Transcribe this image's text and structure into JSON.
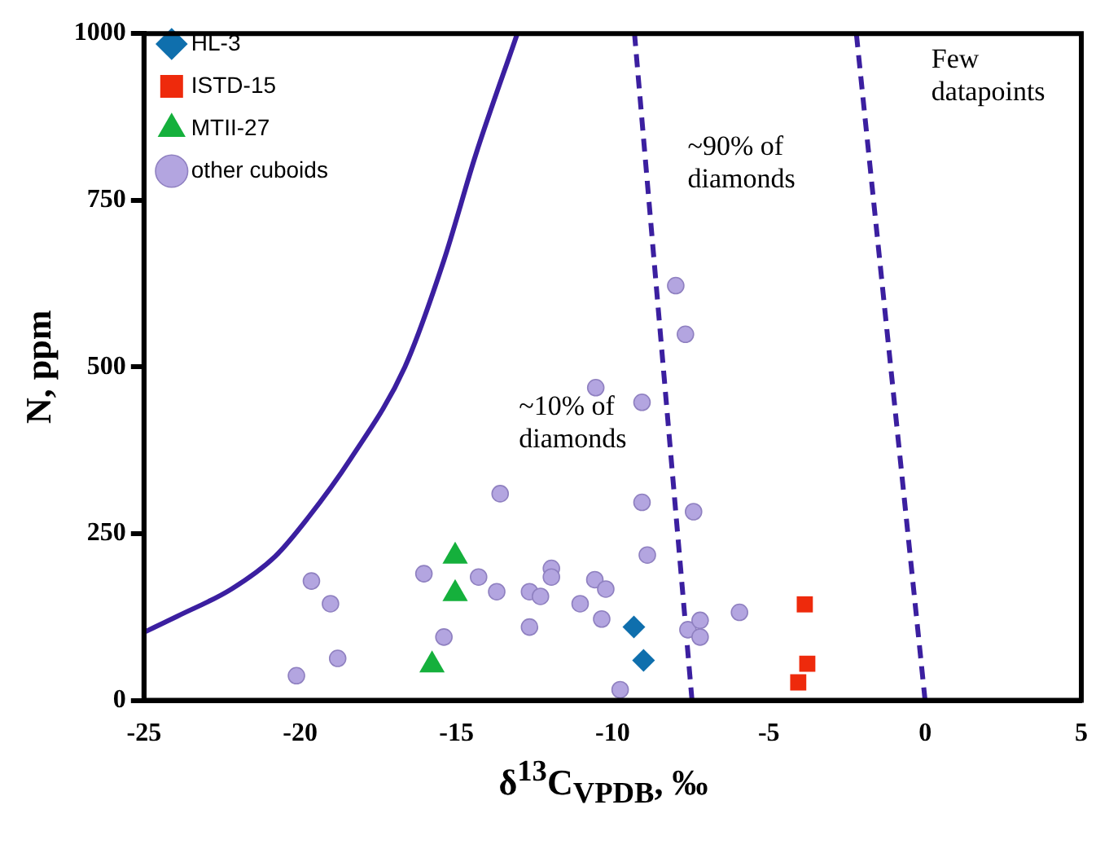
{
  "chart_data": {
    "type": "scatter",
    "xlabel": "δ$^{13}$C$_{VPDB}$, ‰",
    "ylabel": "N, ppm",
    "xlim": [
      -25,
      5
    ],
    "xticks": [
      -25,
      -20,
      -15,
      -10,
      -5,
      0,
      5
    ],
    "ylim": [
      0,
      1000
    ],
    "yticks": [
      0,
      250,
      500,
      750,
      1000
    ],
    "grid": false,
    "legend": "top left",
    "annotations": [
      "~10% of diamonds",
      "~90% of diamonds",
      "Few datapoints"
    ],
    "series": [
      {
        "name": "HL-3",
        "type": "scatter",
        "marker": "diamond",
        "color": "#0f6fad",
        "x": [
          -9.32,
          -9.01
        ],
        "values": [
          110,
          60
        ]
      },
      {
        "name": "ISTD-15",
        "type": "scatter",
        "marker": "square",
        "color": "#ee2a0c",
        "x": [
          -3.85,
          -3.77,
          -4.06
        ],
        "values": [
          144,
          55,
          27
        ]
      },
      {
        "name": "MTII-27",
        "type": "scatter",
        "marker": "triangle",
        "color": "#15b03c",
        "x": [
          -15.04,
          -15.04,
          -15.78
        ],
        "values": [
          216,
          160,
          53
        ]
      },
      {
        "name": "other cuboids",
        "type": "scatter",
        "marker": "circle",
        "color": "#b3a5e0",
        "x": [
          -19.64,
          -19.03,
          -18.8,
          -20.12,
          -16.04,
          -15.4,
          -13.6,
          -14.29,
          -13.71,
          -12.66,
          -12.31,
          -12.66,
          -11.96,
          -11.96,
          -11.04,
          -10.57,
          -10.35,
          -10.22,
          -10.54,
          -7.98,
          -7.67,
          -9.06,
          -9.06,
          -7.41,
          -8.89,
          -9.76,
          -7.59,
          -7.2,
          -7.2,
          -5.94
        ],
        "values": [
          179,
          145,
          63,
          37,
          190,
          95,
          310,
          185,
          163,
          163,
          156,
          110,
          198,
          185,
          145,
          181,
          122,
          167,
          469,
          622,
          549,
          447,
          297,
          283,
          218,
          16,
          106,
          120,
          95,
          132
        ]
      },
      {
        "type": "line",
        "line_style": "solid",
        "color": "#3b1fa0",
        "x": [
          -25,
          -23.94,
          -22.2,
          -20.8,
          -19.78,
          -18.39,
          -16.65,
          -15.4,
          -14.39,
          -13.05
        ],
        "values": [
          102,
          126,
          167,
          216,
          272,
          362,
          500,
          660,
          817,
          1000
        ]
      },
      {
        "type": "line",
        "line_style": "dashed",
        "color": "#3b1fa0",
        "x": [
          -7.46,
          -9.3
        ],
        "values": [
          0,
          1000
        ]
      },
      {
        "type": "line",
        "line_style": "dashed",
        "color": "#3b1fa0",
        "x": [
          0,
          -2.2
        ],
        "values": [
          0,
          1000
        ]
      }
    ]
  }
}
